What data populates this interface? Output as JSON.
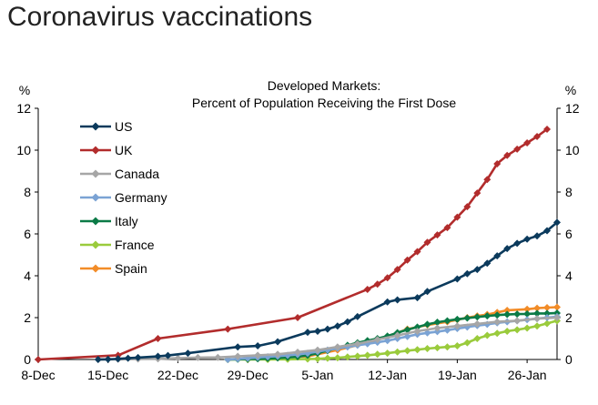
{
  "page": {
    "title": "Coronavirus vaccinations"
  },
  "chart_data": {
    "type": "line",
    "title": "Developed Markets:",
    "subtitle": "Percent of Population Receiving the First Dose",
    "y_unit_left": "%",
    "y_unit_right": "%",
    "ylim": [
      0,
      12
    ],
    "yticks": [
      0,
      2,
      4,
      6,
      8,
      10,
      12
    ],
    "xlim": [
      "2020-12-08",
      "2021-01-29"
    ],
    "xticks": [
      "2020-12-08",
      "2020-12-15",
      "2020-12-22",
      "2020-12-29",
      "2021-01-05",
      "2021-01-12",
      "2021-01-19",
      "2021-01-26"
    ],
    "xtick_labels": [
      "8-Dec",
      "15-Dec",
      "22-Dec",
      "29-Dec",
      "5-Jan",
      "12-Jan",
      "19-Jan",
      "26-Jan"
    ],
    "grid": false,
    "legend_position": "top-left",
    "series": [
      {
        "name": "US",
        "color": "#0b3a5c",
        "points": [
          [
            "2020-12-14",
            0.0
          ],
          [
            "2020-12-15",
            0.01
          ],
          [
            "2020-12-16",
            0.03
          ],
          [
            "2020-12-17",
            0.06
          ],
          [
            "2020-12-18",
            0.09
          ],
          [
            "2020-12-20",
            0.15
          ],
          [
            "2020-12-21",
            0.19
          ],
          [
            "2020-12-23",
            0.3
          ],
          [
            "2020-12-28",
            0.6
          ],
          [
            "2020-12-30",
            0.65
          ],
          [
            "2021-01-01",
            0.85
          ],
          [
            "2021-01-04",
            1.3
          ],
          [
            "2021-01-05",
            1.35
          ],
          [
            "2021-01-06",
            1.45
          ],
          [
            "2021-01-07",
            1.6
          ],
          [
            "2021-01-08",
            1.8
          ],
          [
            "2021-01-09",
            2.05
          ],
          [
            "2021-01-12",
            2.75
          ],
          [
            "2021-01-13",
            2.85
          ],
          [
            "2021-01-15",
            2.95
          ],
          [
            "2021-01-16",
            3.25
          ],
          [
            "2021-01-19",
            3.85
          ],
          [
            "2021-01-20",
            4.1
          ],
          [
            "2021-01-21",
            4.3
          ],
          [
            "2021-01-22",
            4.6
          ],
          [
            "2021-01-23",
            4.95
          ],
          [
            "2021-01-24",
            5.3
          ],
          [
            "2021-01-25",
            5.55
          ],
          [
            "2021-01-26",
            5.75
          ],
          [
            "2021-01-27",
            5.9
          ],
          [
            "2021-01-28",
            6.15
          ],
          [
            "2021-01-29",
            6.55
          ]
        ]
      },
      {
        "name": "UK",
        "color": "#b22c2c",
        "points": [
          [
            "2020-12-08",
            0.0
          ],
          [
            "2020-12-16",
            0.2
          ],
          [
            "2020-12-20",
            1.0
          ],
          [
            "2020-12-27",
            1.45
          ],
          [
            "2021-01-03",
            2.0
          ],
          [
            "2021-01-10",
            3.35
          ],
          [
            "2021-01-11",
            3.6
          ],
          [
            "2021-01-12",
            3.9
          ],
          [
            "2021-01-13",
            4.3
          ],
          [
            "2021-01-14",
            4.75
          ],
          [
            "2021-01-15",
            5.15
          ],
          [
            "2021-01-16",
            5.6
          ],
          [
            "2021-01-17",
            5.95
          ],
          [
            "2021-01-18",
            6.3
          ],
          [
            "2021-01-19",
            6.8
          ],
          [
            "2021-01-20",
            7.3
          ],
          [
            "2021-01-21",
            7.95
          ],
          [
            "2021-01-22",
            8.6
          ],
          [
            "2021-01-23",
            9.35
          ],
          [
            "2021-01-24",
            9.75
          ],
          [
            "2021-01-25",
            10.05
          ],
          [
            "2021-01-26",
            10.35
          ],
          [
            "2021-01-27",
            10.65
          ],
          [
            "2021-01-28",
            11.0
          ]
        ]
      },
      {
        "name": "Canada",
        "color": "#a6a6a6",
        "points": [
          [
            "2020-12-14",
            0.0
          ],
          [
            "2020-12-16",
            0.01
          ],
          [
            "2020-12-18",
            0.02
          ],
          [
            "2020-12-20",
            0.03
          ],
          [
            "2020-12-22",
            0.06
          ],
          [
            "2020-12-24",
            0.09
          ],
          [
            "2020-12-26",
            0.1
          ],
          [
            "2020-12-28",
            0.15
          ],
          [
            "2020-12-30",
            0.2
          ],
          [
            "2021-01-01",
            0.25
          ],
          [
            "2021-01-03",
            0.35
          ],
          [
            "2021-01-05",
            0.45
          ],
          [
            "2021-01-07",
            0.6
          ],
          [
            "2021-01-09",
            0.75
          ],
          [
            "2021-01-11",
            0.95
          ],
          [
            "2021-01-13",
            1.15
          ],
          [
            "2021-01-15",
            1.35
          ],
          [
            "2021-01-17",
            1.5
          ],
          [
            "2021-01-19",
            1.6
          ],
          [
            "2021-01-21",
            1.7
          ],
          [
            "2021-01-23",
            1.8
          ],
          [
            "2021-01-25",
            1.85
          ],
          [
            "2021-01-27",
            1.95
          ],
          [
            "2021-01-29",
            2.0
          ]
        ]
      },
      {
        "name": "Germany",
        "color": "#7ba3d4",
        "points": [
          [
            "2020-12-27",
            0.0
          ],
          [
            "2020-12-28",
            0.03
          ],
          [
            "2020-12-29",
            0.06
          ],
          [
            "2020-12-30",
            0.1
          ],
          [
            "2020-12-31",
            0.13
          ],
          [
            "2021-01-01",
            0.16
          ],
          [
            "2021-01-02",
            0.2
          ],
          [
            "2021-01-03",
            0.24
          ],
          [
            "2021-01-04",
            0.3
          ],
          [
            "2021-01-05",
            0.38
          ],
          [
            "2021-01-06",
            0.45
          ],
          [
            "2021-01-07",
            0.53
          ],
          [
            "2021-01-08",
            0.6
          ],
          [
            "2021-01-09",
            0.68
          ],
          [
            "2021-01-10",
            0.75
          ],
          [
            "2021-01-11",
            0.82
          ],
          [
            "2021-01-12",
            0.9
          ],
          [
            "2021-01-13",
            1.0
          ],
          [
            "2021-01-14",
            1.1
          ],
          [
            "2021-01-15",
            1.2
          ],
          [
            "2021-01-16",
            1.27
          ],
          [
            "2021-01-17",
            1.33
          ],
          [
            "2021-01-18",
            1.4
          ],
          [
            "2021-01-19",
            1.48
          ],
          [
            "2021-01-20",
            1.55
          ],
          [
            "2021-01-21",
            1.62
          ],
          [
            "2021-01-22",
            1.68
          ],
          [
            "2021-01-23",
            1.75
          ],
          [
            "2021-01-24",
            1.8
          ],
          [
            "2021-01-25",
            1.85
          ],
          [
            "2021-01-26",
            1.9
          ],
          [
            "2021-01-27",
            1.95
          ],
          [
            "2021-01-28",
            2.0
          ],
          [
            "2021-01-29",
            2.05
          ]
        ]
      },
      {
        "name": "Italy",
        "color": "#0b7a46",
        "points": [
          [
            "2020-12-27",
            0.0
          ],
          [
            "2020-12-28",
            0.01
          ],
          [
            "2020-12-29",
            0.02
          ],
          [
            "2020-12-30",
            0.03
          ],
          [
            "2020-12-31",
            0.05
          ],
          [
            "2021-01-01",
            0.07
          ],
          [
            "2021-01-02",
            0.1
          ],
          [
            "2021-01-03",
            0.13
          ],
          [
            "2021-01-04",
            0.2
          ],
          [
            "2021-01-05",
            0.3
          ],
          [
            "2021-01-06",
            0.42
          ],
          [
            "2021-01-07",
            0.55
          ],
          [
            "2021-01-08",
            0.68
          ],
          [
            "2021-01-09",
            0.8
          ],
          [
            "2021-01-10",
            0.9
          ],
          [
            "2021-01-11",
            1.0
          ],
          [
            "2021-01-12",
            1.12
          ],
          [
            "2021-01-13",
            1.28
          ],
          [
            "2021-01-14",
            1.42
          ],
          [
            "2021-01-15",
            1.55
          ],
          [
            "2021-01-16",
            1.68
          ],
          [
            "2021-01-17",
            1.78
          ],
          [
            "2021-01-18",
            1.85
          ],
          [
            "2021-01-19",
            1.92
          ],
          [
            "2021-01-20",
            1.98
          ],
          [
            "2021-01-21",
            2.03
          ],
          [
            "2021-01-22",
            2.08
          ],
          [
            "2021-01-23",
            2.12
          ],
          [
            "2021-01-24",
            2.15
          ],
          [
            "2021-01-25",
            2.17
          ],
          [
            "2021-01-26",
            2.18
          ],
          [
            "2021-01-27",
            2.2
          ],
          [
            "2021-01-28",
            2.2
          ],
          [
            "2021-01-29",
            2.22
          ]
        ]
      },
      {
        "name": "France",
        "color": "#9acb3c",
        "points": [
          [
            "2020-12-27",
            0.0
          ],
          [
            "2020-12-29",
            0.0
          ],
          [
            "2020-12-31",
            0.0
          ],
          [
            "2021-01-02",
            0.01
          ],
          [
            "2021-01-04",
            0.02
          ],
          [
            "2021-01-05",
            0.03
          ],
          [
            "2021-01-06",
            0.06
          ],
          [
            "2021-01-07",
            0.08
          ],
          [
            "2021-01-08",
            0.12
          ],
          [
            "2021-01-09",
            0.16
          ],
          [
            "2021-01-10",
            0.2
          ],
          [
            "2021-01-11",
            0.25
          ],
          [
            "2021-01-12",
            0.3
          ],
          [
            "2021-01-13",
            0.36
          ],
          [
            "2021-01-14",
            0.42
          ],
          [
            "2021-01-15",
            0.47
          ],
          [
            "2021-01-16",
            0.52
          ],
          [
            "2021-01-17",
            0.56
          ],
          [
            "2021-01-18",
            0.6
          ],
          [
            "2021-01-19",
            0.65
          ],
          [
            "2021-01-20",
            0.8
          ],
          [
            "2021-01-21",
            1.0
          ],
          [
            "2021-01-22",
            1.15
          ],
          [
            "2021-01-23",
            1.25
          ],
          [
            "2021-01-24",
            1.35
          ],
          [
            "2021-01-25",
            1.42
          ],
          [
            "2021-01-26",
            1.5
          ],
          [
            "2021-01-27",
            1.6
          ],
          [
            "2021-01-28",
            1.72
          ],
          [
            "2021-01-29",
            1.85
          ]
        ]
      },
      {
        "name": "Spain",
        "color": "#f28c28",
        "points": [
          [
            "2020-12-27",
            0.0
          ],
          [
            "2021-01-04",
            0.15
          ],
          [
            "2021-01-07",
            0.45
          ],
          [
            "2021-01-10",
            0.8
          ],
          [
            "2021-01-12",
            1.1
          ],
          [
            "2021-01-14",
            1.45
          ],
          [
            "2021-01-16",
            1.65
          ],
          [
            "2021-01-18",
            1.8
          ],
          [
            "2021-01-19",
            1.9
          ],
          [
            "2021-01-20",
            2.0
          ],
          [
            "2021-01-21",
            2.08
          ],
          [
            "2021-01-22",
            2.15
          ],
          [
            "2021-01-23",
            2.25
          ],
          [
            "2021-01-24",
            2.35
          ],
          [
            "2021-01-26",
            2.4
          ],
          [
            "2021-01-27",
            2.45
          ],
          [
            "2021-01-28",
            2.48
          ],
          [
            "2021-01-29",
            2.5
          ]
        ]
      }
    ]
  }
}
